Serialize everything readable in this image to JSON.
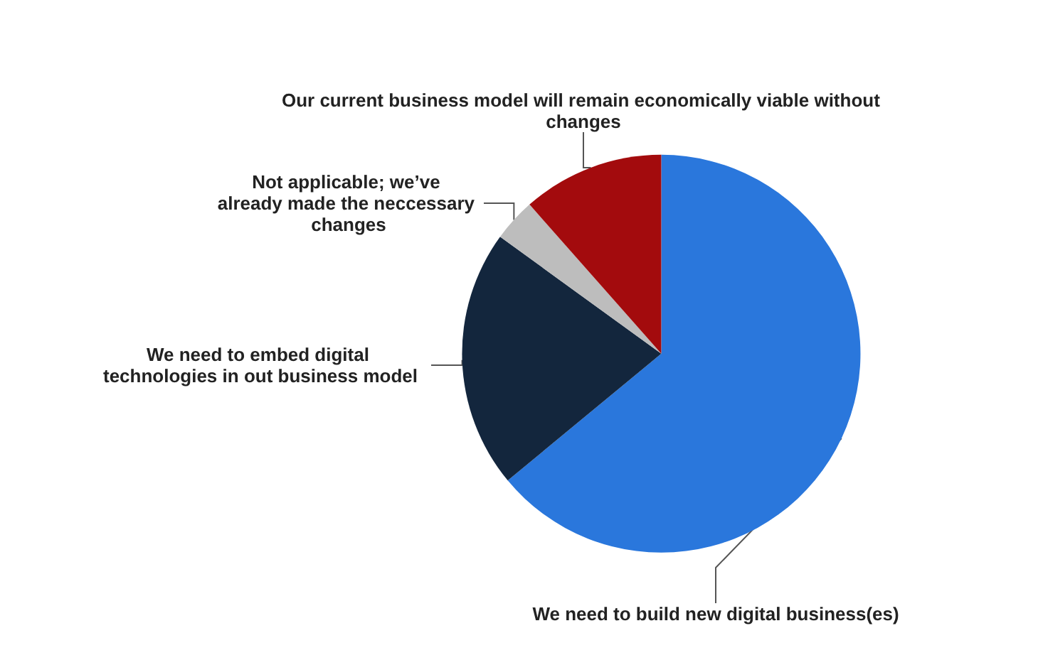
{
  "chart_data": {
    "type": "pie",
    "categories": [
      "We need to build new digital business(es)",
      "We need to embed digital technologies in out business model",
      "Not applicable; we’ve already made the neccessary changes",
      "Our current business model will remain economically viable without changes"
    ],
    "values": [
      64,
      21,
      3.5,
      11.5
    ],
    "colors": [
      "#2a77dc",
      "#13263d",
      "#bdbdbd",
      "#a30b0d"
    ],
    "legend": false
  }
}
